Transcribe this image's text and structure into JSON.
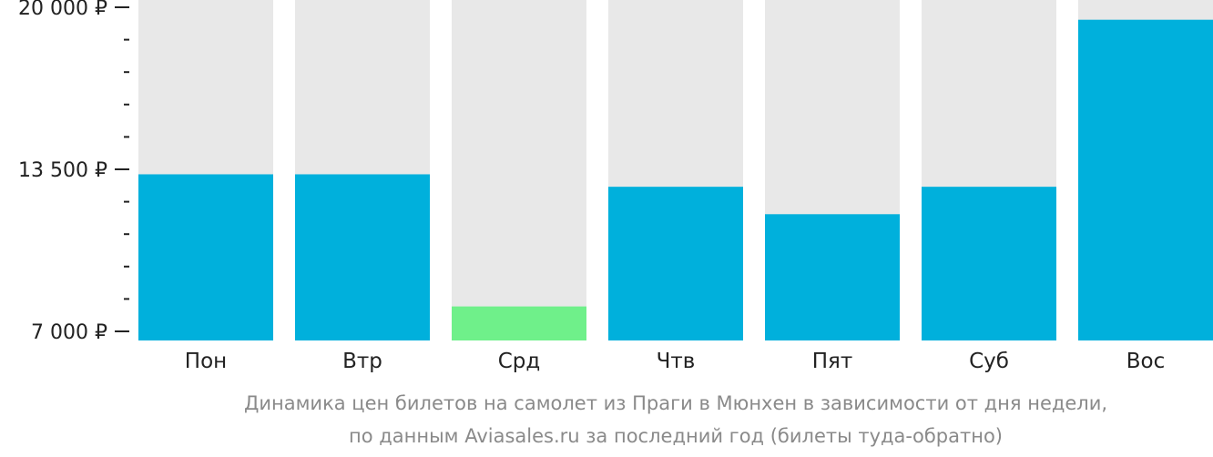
{
  "chart_data": {
    "type": "bar",
    "categories": [
      "Пон",
      "Втр",
      "Срд",
      "Чтв",
      "Пят",
      "Суб",
      "Вос"
    ],
    "values": [
      13300,
      13300,
      8000,
      12800,
      11700,
      12800,
      19500
    ],
    "ylim": [
      7000,
      20000
    ],
    "yticks": [
      {
        "value": 20000,
        "label": "20 000 ₽"
      },
      {
        "value": 13500,
        "label": "13 500 ₽"
      },
      {
        "value": 7000,
        "label": "7 000 ₽"
      }
    ],
    "minor_yticks": [
      18700,
      17400,
      16100,
      14800,
      12200,
      10900,
      9600,
      8300
    ],
    "title": "",
    "xlabel": "",
    "ylabel": "",
    "highlight_index": 2,
    "colors": {
      "bar": "#00b0dc",
      "highlight": "#6ff08a",
      "track": "#e8e8e8",
      "tick": "#222222"
    },
    "grid": false,
    "legend": "none"
  },
  "caption": {
    "line1": "Динамика цен билетов на самолет из Праги в Мюнхен в зависимости от дня недели,",
    "line2": "по данным Aviasales.ru за последний год (билеты туда-обратно)"
  }
}
